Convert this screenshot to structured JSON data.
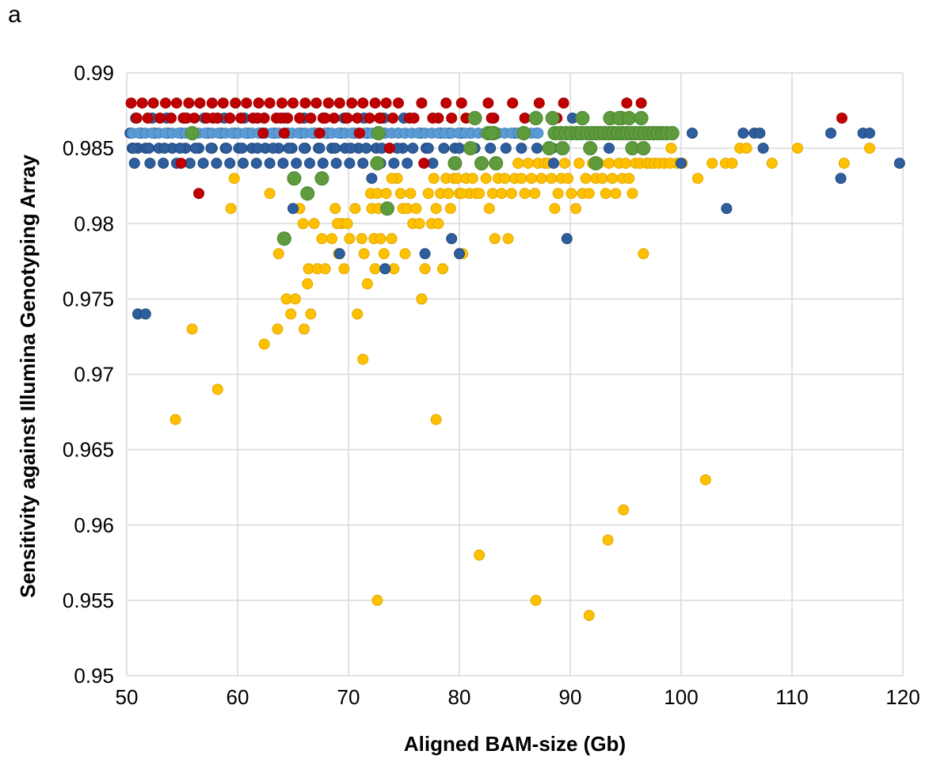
{
  "panel_label": "a",
  "chart_data": {
    "type": "scatter",
    "title": "",
    "xlabel": "Aligned BAM-size (Gb)",
    "ylabel": "Sensitivity against Illumina Genotyping Array",
    "xlim": [
      50,
      120
    ],
    "ylim": [
      0.95,
      0.99
    ],
    "x_ticks": [
      50,
      60,
      70,
      80,
      90,
      100,
      110,
      120
    ],
    "x_tick_labels": [
      "50",
      "60",
      "70",
      "80",
      "90",
      "100",
      "110",
      "120"
    ],
    "y_ticks": [
      0.95,
      0.955,
      0.96,
      0.965,
      0.97,
      0.975,
      0.98,
      0.985,
      0.99
    ],
    "y_tick_labels": [
      "0.95",
      "0.955",
      "0.96",
      "0.965",
      "0.97",
      "0.975",
      "0.98",
      "0.985",
      "0.99"
    ],
    "grid": true,
    "legend": "none",
    "series": [
      {
        "color": "#ffc000",
        "x": [
          54.4,
          55.9,
          58.2,
          59.4,
          62.4,
          63.6,
          63.7,
          64.4,
          64.8,
          65.2,
          65.6,
          65.9,
          66.0,
          66.3,
          66.4,
          66.6,
          66.9,
          67.2,
          67.6,
          67.9,
          68.5,
          68.8,
          69.1,
          69.4,
          69.6,
          69.9,
          70.1,
          70.6,
          70.8,
          71.2,
          71.4,
          71.7,
          72.0,
          72.1,
          72.3,
          72.4,
          72.6,
          72.7,
          72.9,
          73.2,
          73.4,
          73.6,
          73.9,
          74.1,
          74.4,
          74.7,
          74.9,
          75.1,
          75.3,
          75.6,
          75.8,
          76.1,
          76.4,
          76.6,
          76.9,
          77.2,
          77.5,
          77.7,
          77.9,
          78.1,
          78.3,
          78.5,
          78.8,
          79.0,
          79.2,
          79.5,
          79.8,
          80.0,
          80.3,
          80.6,
          80.9,
          81.2,
          81.5,
          81.8,
          82.1,
          82.4,
          82.7,
          83.0,
          83.2,
          83.5,
          83.8,
          84.1,
          84.4,
          84.7,
          85.0,
          85.3,
          85.6,
          85.9,
          86.2,
          86.5,
          86.8,
          87.1,
          87.4,
          87.7,
          88.0,
          88.3,
          88.6,
          88.9,
          89.2,
          89.5,
          89.8,
          90.1,
          90.5,
          90.8,
          91.1,
          91.4,
          91.7,
          92.0,
          92.3,
          92.6,
          92.9,
          93.2,
          93.5,
          93.8,
          94.1,
          94.4,
          94.7,
          95.0,
          95.3,
          95.6,
          95.9,
          96.3,
          96.6,
          96.9,
          97.2,
          97.6,
          98.0,
          98.5,
          99.1,
          99.6,
          100.1,
          101.5,
          102.2,
          102.8,
          104.0,
          104.6,
          105.3,
          105.9,
          108.2,
          110.5,
          114.7,
          117.0,
          94.8,
          93.4,
          91.7,
          86.9,
          81.8,
          72.6,
          77.9,
          71.3,
          76.6,
          69.0,
          59.7,
          62.9,
          73.9,
          80.2,
          85.3,
          99.0
        ],
        "y": [
          0.967,
          0.973,
          0.969,
          0.981,
          0.972,
          0.973,
          0.978,
          0.975,
          0.974,
          0.975,
          0.981,
          0.98,
          0.973,
          0.976,
          0.977,
          0.974,
          0.98,
          0.977,
          0.979,
          0.977,
          0.979,
          0.981,
          0.978,
          0.98,
          0.977,
          0.98,
          0.979,
          0.981,
          0.974,
          0.979,
          0.978,
          0.976,
          0.982,
          0.981,
          0.979,
          0.977,
          0.982,
          0.981,
          0.979,
          0.978,
          0.982,
          0.981,
          0.979,
          0.977,
          0.983,
          0.982,
          0.981,
          0.978,
          0.981,
          0.982,
          0.98,
          0.981,
          0.98,
          0.975,
          0.977,
          0.982,
          0.98,
          0.983,
          0.981,
          0.98,
          0.982,
          0.977,
          0.983,
          0.982,
          0.981,
          0.983,
          0.983,
          0.982,
          0.978,
          0.983,
          0.982,
          0.983,
          0.982,
          0.982,
          0.984,
          0.983,
          0.981,
          0.982,
          0.979,
          0.983,
          0.982,
          0.983,
          0.979,
          0.982,
          0.983,
          0.984,
          0.983,
          0.982,
          0.984,
          0.983,
          0.982,
          0.984,
          0.983,
          0.984,
          0.984,
          0.983,
          0.981,
          0.982,
          0.983,
          0.984,
          0.983,
          0.982,
          0.981,
          0.984,
          0.982,
          0.983,
          0.982,
          0.984,
          0.983,
          0.984,
          0.983,
          0.982,
          0.984,
          0.983,
          0.982,
          0.984,
          0.983,
          0.984,
          0.983,
          0.982,
          0.984,
          0.984,
          0.978,
          0.984,
          0.984,
          0.984,
          0.984,
          0.984,
          0.985,
          0.984,
          0.984,
          0.983,
          0.963,
          0.984,
          0.984,
          0.984,
          0.985,
          0.985,
          0.984,
          0.985,
          0.984,
          0.985,
          0.961,
          0.959,
          0.954,
          0.955,
          0.958,
          0.955,
          0.967,
          0.971,
          0.975,
          0.98,
          0.983,
          0.982,
          0.983,
          0.982,
          0.984,
          0.984
        ]
      },
      {
        "color": "#2e5e9e",
        "x": [
          50.3,
          50.5,
          50.7,
          51.0,
          51.3,
          51.7,
          52.1,
          52.5,
          52.9,
          53.3,
          53.7,
          54.1,
          54.5,
          54.9,
          55.3,
          55.7,
          56.1,
          56.5,
          56.9,
          57.3,
          57.7,
          58.1,
          58.5,
          58.9,
          59.3,
          59.7,
          60.1,
          60.5,
          60.9,
          61.3,
          61.7,
          62.1,
          62.5,
          62.9,
          63.3,
          63.7,
          64.1,
          64.5,
          64.9,
          65.3,
          65.7,
          66.1,
          66.5,
          66.9,
          67.3,
          67.7,
          68.1,
          68.5,
          68.9,
          69.3,
          69.7,
          70.1,
          70.5,
          70.9,
          71.3,
          71.7,
          72.1,
          72.5,
          72.9,
          73.3,
          73.7,
          74.1,
          74.5,
          74.9,
          75.3,
          76.5,
          77.0,
          77.6,
          78.3,
          79.1,
          79.6,
          80.2,
          81.0,
          83.5,
          85.0,
          87.0,
          88.5,
          89.7,
          90.2,
          93.5,
          100.0,
          101.0,
          104.1,
          105.6,
          106.6,
          107.1,
          107.4,
          113.5,
          114.4,
          116.4,
          117.0,
          119.7,
          51.0,
          51.7,
          65.0,
          69.2,
          73.3,
          76.9,
          79.3,
          80.0,
          50.8,
          52.3,
          53.6,
          55.2,
          57.0,
          58.8,
          60.6,
          62.4,
          64.2,
          66.0,
          67.8,
          69.6,
          71.4,
          73.2,
          75.0,
          50.6,
          52.0,
          53.4,
          54.8,
          56.2,
          57.6,
          59.0,
          60.4,
          61.8,
          63.2,
          64.6,
          66.0,
          67.4,
          68.8,
          70.2,
          71.6,
          73.0,
          74.4,
          75.8,
          77.2,
          78.6,
          80.0,
          81.4,
          82.8,
          84.2,
          85.6,
          87.0,
          88.4
        ],
        "y": [
          0.986,
          0.985,
          0.984,
          0.985,
          0.986,
          0.985,
          0.984,
          0.986,
          0.985,
          0.984,
          0.986,
          0.985,
          0.984,
          0.986,
          0.985,
          0.984,
          0.986,
          0.985,
          0.984,
          0.986,
          0.985,
          0.984,
          0.986,
          0.985,
          0.984,
          0.986,
          0.985,
          0.984,
          0.986,
          0.985,
          0.984,
          0.986,
          0.985,
          0.984,
          0.986,
          0.985,
          0.984,
          0.986,
          0.985,
          0.984,
          0.986,
          0.985,
          0.984,
          0.986,
          0.985,
          0.984,
          0.986,
          0.985,
          0.984,
          0.986,
          0.985,
          0.984,
          0.986,
          0.985,
          0.984,
          0.986,
          0.983,
          0.985,
          0.984,
          0.986,
          0.985,
          0.984,
          0.986,
          0.985,
          0.984,
          0.986,
          0.985,
          0.984,
          0.986,
          0.986,
          0.985,
          0.986,
          0.986,
          0.986,
          0.986,
          0.986,
          0.984,
          0.979,
          0.987,
          0.985,
          0.984,
          0.986,
          0.981,
          0.986,
          0.986,
          0.986,
          0.985,
          0.986,
          0.983,
          0.986,
          0.986,
          0.984,
          0.974,
          0.974,
          0.981,
          0.978,
          0.977,
          0.978,
          0.979,
          0.978,
          0.987,
          0.987,
          0.987,
          0.987,
          0.987,
          0.987,
          0.987,
          0.987,
          0.987,
          0.987,
          0.987,
          0.987,
          0.987,
          0.987,
          0.987,
          0.985,
          0.985,
          0.985,
          0.985,
          0.985,
          0.985,
          0.985,
          0.985,
          0.985,
          0.985,
          0.985,
          0.985,
          0.985,
          0.985,
          0.985,
          0.985,
          0.985,
          0.985,
          0.985,
          0.985,
          0.985,
          0.985,
          0.985,
          0.985,
          0.985,
          0.985,
          0.985,
          0.985
        ]
      },
      {
        "color": "#5b9bd5",
        "x": [
          50.5,
          51.1,
          51.7,
          52.3,
          52.9,
          53.5,
          54.1,
          54.7,
          55.3,
          55.9,
          56.5,
          57.1,
          57.7,
          58.3,
          58.9,
          59.5,
          60.1,
          60.7,
          61.3,
          61.9,
          62.5,
          63.1,
          63.7,
          64.3,
          64.9,
          65.5,
          66.1,
          66.7,
          67.3,
          67.9,
          68.5,
          69.1,
          69.7,
          70.3,
          70.9,
          71.5,
          72.1,
          72.7,
          73.3,
          73.9,
          74.5,
          75.1,
          75.7,
          76.3,
          76.9,
          77.5,
          78.1,
          78.7,
          79.3,
          79.9,
          80.5,
          81.1,
          81.7,
          82.3,
          82.9,
          83.5,
          84.1,
          84.7,
          85.3,
          85.9,
          86.5,
          87.1
        ],
        "y": [
          0.986,
          0.986,
          0.986,
          0.986,
          0.986,
          0.986,
          0.986,
          0.986,
          0.986,
          0.986,
          0.986,
          0.986,
          0.986,
          0.986,
          0.986,
          0.986,
          0.986,
          0.986,
          0.986,
          0.986,
          0.986,
          0.986,
          0.986,
          0.986,
          0.986,
          0.986,
          0.986,
          0.986,
          0.986,
          0.986,
          0.986,
          0.986,
          0.986,
          0.986,
          0.986,
          0.986,
          0.986,
          0.986,
          0.986,
          0.986,
          0.986,
          0.986,
          0.986,
          0.986,
          0.986,
          0.986,
          0.986,
          0.986,
          0.986,
          0.986,
          0.986,
          0.986,
          0.986,
          0.986,
          0.986,
          0.986,
          0.986,
          0.986,
          0.986,
          0.986,
          0.986,
          0.986
        ]
      },
      {
        "color": "#c00000",
        "x": [
          50.4,
          50.9,
          51.4,
          51.9,
          52.4,
          53.0,
          53.5,
          54.0,
          54.5,
          55.1,
          55.6,
          56.1,
          56.6,
          57.2,
          57.7,
          58.2,
          58.7,
          59.3,
          59.8,
          60.3,
          60.8,
          61.4,
          61.9,
          62.4,
          62.9,
          63.5,
          64.0,
          64.5,
          65.0,
          65.6,
          66.1,
          66.6,
          67.1,
          67.7,
          68.2,
          68.7,
          69.2,
          69.8,
          70.3,
          70.8,
          71.3,
          71.9,
          72.4,
          72.9,
          73.4,
          74.0,
          74.5,
          75.5,
          76.6,
          77.6,
          78.8,
          79.3,
          80.2,
          81.4,
          82.6,
          83.1,
          84.8,
          85.9,
          87.2,
          88.8,
          89.4,
          95.1,
          96.4,
          114.5,
          54.9,
          56.5,
          62.3,
          64.2,
          67.4,
          71.0,
          73.7,
          76.8,
          55.4,
          57.8,
          59.3,
          61.8,
          63.9,
          65.6,
          67.9,
          69.9,
          72.8,
          75.9,
          78.1,
          80.6,
          82.9
        ],
        "y": [
          0.988,
          0.987,
          0.988,
          0.987,
          0.988,
          0.987,
          0.988,
          0.987,
          0.988,
          0.987,
          0.988,
          0.987,
          0.988,
          0.987,
          0.988,
          0.987,
          0.988,
          0.987,
          0.988,
          0.987,
          0.988,
          0.987,
          0.988,
          0.987,
          0.988,
          0.987,
          0.988,
          0.987,
          0.988,
          0.987,
          0.988,
          0.987,
          0.988,
          0.987,
          0.988,
          0.987,
          0.988,
          0.987,
          0.988,
          0.987,
          0.988,
          0.987,
          0.988,
          0.987,
          0.988,
          0.987,
          0.988,
          0.987,
          0.988,
          0.987,
          0.988,
          0.987,
          0.988,
          0.987,
          0.988,
          0.987,
          0.988,
          0.987,
          0.988,
          0.987,
          0.988,
          0.988,
          0.988,
          0.987,
          0.984,
          0.982,
          0.986,
          0.986,
          0.986,
          0.986,
          0.985,
          0.984,
          0.987,
          0.987,
          0.987,
          0.987,
          0.987,
          0.987,
          0.987,
          0.987,
          0.987,
          0.987,
          0.987,
          0.987,
          0.987
        ]
      },
      {
        "color": "#5d9b3d",
        "x": [
          55.9,
          64.2,
          65.1,
          66.3,
          67.6,
          72.6,
          73.5,
          79.6,
          81.0,
          81.4,
          82.0,
          82.6,
          83.1,
          83.3,
          85.8,
          86.9,
          88.1,
          88.6,
          89.1,
          89.6,
          90.1,
          90.6,
          91.0,
          91.5,
          91.9,
          92.3,
          92.7,
          93.1,
          93.5,
          93.9,
          94.3,
          94.7,
          95.1,
          95.5,
          95.9,
          96.3,
          96.7,
          97.1,
          97.5,
          97.9,
          98.3,
          98.7,
          99.2,
          88.4,
          89.3,
          91.8,
          94.6,
          95.6,
          96.6,
          82.9,
          72.7,
          92.3,
          93.6,
          94.4,
          95.3,
          96.4,
          91.1
        ],
        "y": [
          0.986,
          0.979,
          0.983,
          0.982,
          0.983,
          0.984,
          0.981,
          0.984,
          0.985,
          0.987,
          0.984,
          0.986,
          0.986,
          0.984,
          0.986,
          0.987,
          0.985,
          0.986,
          0.986,
          0.986,
          0.986,
          0.986,
          0.986,
          0.986,
          0.986,
          0.986,
          0.986,
          0.986,
          0.986,
          0.986,
          0.986,
          0.986,
          0.986,
          0.986,
          0.986,
          0.986,
          0.986,
          0.986,
          0.986,
          0.986,
          0.986,
          0.986,
          0.986,
          0.987,
          0.985,
          0.985,
          0.987,
          0.985,
          0.985,
          0.986,
          0.986,
          0.984,
          0.987,
          0.987,
          0.987,
          0.987,
          0.987
        ]
      }
    ]
  }
}
